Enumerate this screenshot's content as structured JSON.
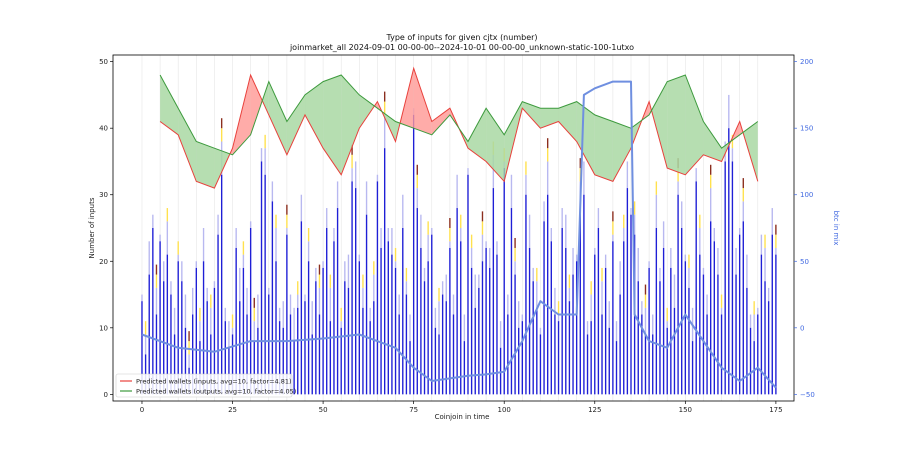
{
  "chart_data": {
    "type": "bar",
    "title": "Type of inputs for given cjtx (number)",
    "subtitle": "joinmarket_all 2024-09-01 00-00-00--2024-10-01 00-00-00_unknown-static-100-1utxo",
    "xlabel": "Coinjoin in time",
    "ylabel": "Number of inputs",
    "ylabel_right": "btc in mix",
    "xlim": [
      -8,
      180
    ],
    "ylim": [
      -1,
      51
    ],
    "ylim_right": [
      -55,
      205
    ],
    "xticks": [
      "0",
      "25",
      "50",
      "75",
      "100",
      "125",
      "150",
      "175"
    ],
    "yticks": [
      "0",
      "10",
      "20",
      "30",
      "40",
      "50"
    ],
    "yticks_right": [
      "−50",
      "0",
      "50",
      "100",
      "150",
      "200"
    ],
    "grid": "vertical",
    "legend_position": "bottom-left",
    "legend": [
      {
        "label": "Predicted wallets (inputs, avg=10, factor=4.81)",
        "color": "#e8413c"
      },
      {
        "label": "Predicted wallets (outputs, avg=10, factor=4.05)",
        "color": "#3d9a3d"
      }
    ],
    "colors": {
      "bar": "#1f1fd6",
      "bar_light": "#b8b8f0",
      "bar_yellow": "#ffe14d",
      "bar_brown": "#8b2e1e",
      "btc_line": "#6f8fe0",
      "fill_green": "#a9d8a3",
      "fill_red": "#ff9e9a",
      "inputs_line": "#e8413c",
      "outputs_line": "#3d9a3d"
    },
    "series": [
      {
        "name": "Predicted wallets (inputs, avg=10, factor=4.81)",
        "kind": "line",
        "x": [
          5,
          10,
          15,
          20,
          25,
          30,
          35,
          40,
          45,
          50,
          55,
          60,
          65,
          70,
          75,
          80,
          85,
          90,
          95,
          100,
          105,
          110,
          115,
          120,
          125,
          130,
          135,
          140,
          145,
          150,
          155,
          160,
          165,
          170
        ],
        "y": [
          41,
          39,
          32,
          31,
          37,
          48,
          42,
          36,
          42,
          37,
          33,
          40,
          44,
          38,
          49,
          41,
          43,
          37,
          35,
          32,
          43,
          40,
          41,
          38,
          33,
          32,
          37,
          44,
          34,
          33,
          36,
          35,
          41,
          32
        ]
      },
      {
        "name": "Predicted wallets (outputs, avg=10, factor=4.05)",
        "kind": "line",
        "x": [
          5,
          10,
          15,
          20,
          25,
          30,
          35,
          40,
          45,
          50,
          55,
          60,
          65,
          70,
          75,
          80,
          85,
          90,
          95,
          100,
          105,
          110,
          115,
          120,
          125,
          130,
          135,
          140,
          145,
          150,
          155,
          160,
          165,
          170
        ],
        "y": [
          48,
          43,
          38,
          37,
          36,
          39,
          47,
          41,
          45,
          47,
          48,
          45,
          43,
          41,
          40,
          39,
          42,
          38,
          43,
          39,
          44,
          43,
          43,
          44,
          42,
          41,
          40,
          42,
          47,
          48,
          41,
          37,
          39,
          41
        ]
      },
      {
        "name": "btc in mix",
        "kind": "line",
        "axis": "right",
        "x": [
          0,
          10,
          20,
          30,
          40,
          50,
          60,
          70,
          75,
          80,
          85,
          90,
          95,
          100,
          105,
          110,
          115,
          120,
          122,
          125,
          130,
          135,
          136,
          140,
          145,
          150,
          155,
          160,
          165,
          170,
          175
        ],
        "y": [
          -5,
          -15,
          -18,
          -10,
          -10,
          -8,
          -5,
          -15,
          -30,
          -40,
          -38,
          -36,
          -35,
          -33,
          -10,
          20,
          10,
          10,
          175,
          180,
          185,
          185,
          10,
          -10,
          -15,
          10,
          -10,
          -30,
          -40,
          -30,
          -45
        ]
      },
      {
        "name": "inputs",
        "kind": "bar",
        "x": [
          0,
          1,
          2,
          3,
          4,
          5,
          6,
          7,
          8,
          9,
          10,
          11,
          12,
          13,
          14,
          15,
          16,
          17,
          18,
          19,
          20,
          21,
          22,
          23,
          24,
          25,
          26,
          27,
          28,
          29,
          30,
          31,
          32,
          33,
          34,
          35,
          36,
          37,
          38,
          39,
          40,
          41,
          42,
          43,
          44,
          45,
          46,
          47,
          48,
          49,
          50,
          51,
          52,
          53,
          54,
          55,
          56,
          57,
          58,
          59,
          60,
          61,
          62,
          63,
          64,
          65,
          66,
          67,
          68,
          69,
          70,
          71,
          72,
          73,
          74,
          75,
          76,
          77,
          78,
          79,
          80,
          81,
          82,
          83,
          84,
          85,
          86,
          87,
          88,
          89,
          90,
          91,
          92,
          93,
          94,
          95,
          96,
          97,
          98,
          99,
          100,
          101,
          102,
          103,
          104,
          105,
          106,
          107,
          108,
          109,
          110,
          111,
          112,
          113,
          114,
          115,
          116,
          117,
          118,
          119,
          120,
          121,
          122,
          123,
          124,
          125,
          126,
          127,
          128,
          129,
          130,
          131,
          132,
          133,
          134,
          135,
          136,
          137,
          138,
          139,
          140,
          141,
          142,
          143,
          144,
          145,
          146,
          147,
          148,
          149,
          150,
          151,
          152,
          153,
          154,
          155,
          156,
          157,
          158,
          159,
          160,
          161,
          162,
          163,
          164,
          165,
          166,
          167,
          168,
          169,
          170,
          171,
          172,
          173,
          174,
          175
        ],
        "values": [
          14,
          6,
          18,
          25,
          12,
          23,
          17,
          21,
          15,
          9,
          20,
          17,
          10,
          4,
          12,
          19,
          8,
          20,
          14,
          9,
          16,
          24,
          33,
          11,
          7,
          9,
          22,
          14,
          19,
          12,
          25,
          8,
          10,
          35,
          33,
          15,
          29,
          20,
          11,
          10,
          24,
          12,
          8,
          13,
          26,
          14,
          20,
          9,
          17,
          12,
          19,
          25,
          11,
          23,
          28,
          10,
          17,
          16,
          32,
          31,
          20,
          13,
          27,
          11,
          14,
          32,
          22,
          37,
          23,
          21,
          19,
          12,
          25,
          15,
          8,
          42,
          28,
          22,
          17,
          20,
          24,
          10,
          9,
          15,
          14,
          22,
          12,
          28,
          23,
          8,
          33,
          19,
          13,
          16,
          20,
          22,
          19,
          31,
          21,
          7,
          34,
          12,
          28,
          18,
          10,
          11,
          30,
          22,
          17,
          13,
          9,
          26,
          30,
          23,
          12,
          11,
          25,
          22,
          14,
          18,
          20,
          29,
          30,
          9,
          11,
          21,
          25,
          12,
          19,
          10,
          23,
          8,
          15,
          23,
          31,
          27,
          24,
          17,
          12,
          9,
          19,
          9,
          25,
          17,
          22,
          10,
          19,
          13,
          30,
          25,
          20,
          16,
          8,
          32,
          21,
          18,
          12,
          26,
          23,
          18,
          12,
          35,
          40,
          35,
          18,
          24,
          26,
          16,
          10,
          8,
          12,
          21,
          17,
          14,
          24,
          21
        ]
      }
    ]
  }
}
